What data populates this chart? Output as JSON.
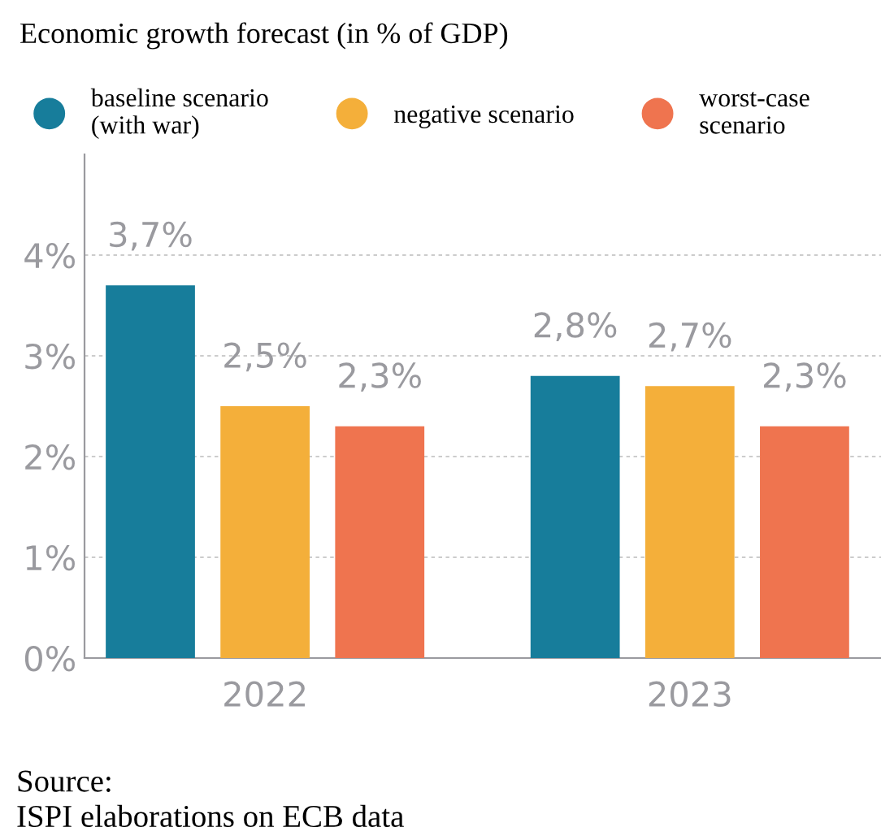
{
  "chart_data": {
    "type": "bar",
    "title": "Economic growth forecast (in % of GDP)",
    "categories": [
      "2022",
      "2023"
    ],
    "series": [
      {
        "name": "baseline scenario\n(with war)",
        "color": "#177d9b",
        "values": [
          3.7,
          2.8
        ],
        "value_labels": [
          "3,7%",
          "2,8%"
        ]
      },
      {
        "name": "negative scenario",
        "color": "#f4af3a",
        "values": [
          2.5,
          2.7
        ],
        "value_labels": [
          "2,5%",
          "2,7%"
        ]
      },
      {
        "name": "worst-case\nscenario",
        "color": "#ef744f",
        "values": [
          2.3,
          2.3
        ],
        "value_labels": [
          "2,3%",
          "2,3%"
        ]
      }
    ],
    "ylim": [
      0,
      5
    ],
    "yticks": [
      {
        "value": 0,
        "label": "0%"
      },
      {
        "value": 1,
        "label": "1%"
      },
      {
        "value": 2,
        "label": "2%"
      },
      {
        "value": 3,
        "label": "3%"
      },
      {
        "value": 4,
        "label": "4%"
      }
    ],
    "grid": "y",
    "legend": "top",
    "annotations": [
      "Source:\nISPI elaborations on ECB data"
    ]
  }
}
